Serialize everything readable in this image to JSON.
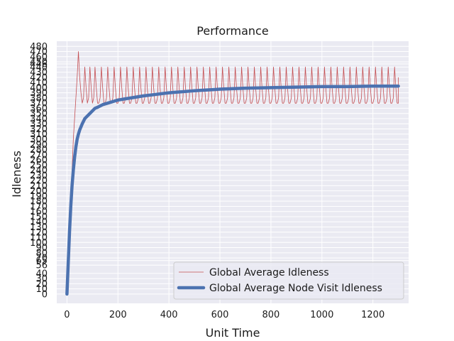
{
  "chart_data": {
    "type": "line",
    "title": "Performance",
    "xlabel": "Unit Time",
    "ylabel": "Idleness",
    "xlim": [
      -40,
      1340
    ],
    "ylim": [
      -18,
      490
    ],
    "grid": true,
    "legend_position": "lower-right",
    "x_ticks": [
      0,
      200,
      400,
      600,
      800,
      1000,
      1200
    ],
    "y_ticks": [
      0,
      10,
      20,
      30,
      40,
      56,
      65,
      70,
      80,
      90,
      100,
      110,
      120,
      130,
      140,
      150,
      160,
      170,
      180,
      190,
      200,
      210,
      220,
      230,
      240,
      250,
      260,
      270,
      280,
      290,
      300,
      310,
      320,
      330,
      340,
      350,
      360,
      370,
      380,
      390,
      400,
      410,
      420,
      430,
      440,
      446,
      450,
      460,
      470,
      480
    ],
    "series": [
      {
        "name": "Global Average Idleness",
        "color": "#c44e52",
        "style": "thin",
        "x": [
          0,
          5,
          10,
          15,
          20,
          25,
          30,
          35,
          40,
          45,
          50,
          55,
          60,
          65,
          70,
          75,
          80,
          85,
          90,
          95,
          100
        ],
        "y": [
          0,
          40,
          90,
          160,
          240,
          300,
          340,
          380,
          420,
          470,
          420,
          390,
          370,
          380,
          440,
          400,
          370,
          380,
          440,
          400,
          370
        ],
        "periodic_tail": {
          "x_start": 100,
          "x_end": 1300,
          "period": 25,
          "pattern_x": [
            0,
            5,
            10,
            15,
            20,
            25
          ],
          "pattern_y": [
            370,
            380,
            440,
            400,
            370,
            370
          ],
          "final_value": 420
        }
      },
      {
        "name": "Global Average Node Visit Idleness",
        "color": "#4c72b0",
        "style": "thick",
        "x": [
          0,
          5,
          10,
          15,
          20,
          25,
          30,
          35,
          40,
          45,
          50,
          60,
          70,
          80,
          90,
          100,
          110,
          120,
          140,
          160,
          180,
          200,
          250,
          300,
          350,
          400,
          450,
          500,
          600,
          700,
          800,
          900,
          1000,
          1100,
          1200,
          1300
        ],
        "y": [
          0,
          60,
          120,
          170,
          210,
          240,
          265,
          285,
          300,
          310,
          318,
          330,
          340,
          345,
          350,
          355,
          360,
          362,
          367,
          370,
          373,
          376,
          380,
          384,
          387,
          390,
          392,
          394,
          397,
          399,
          400,
          401,
          402,
          402,
          403,
          403
        ]
      }
    ]
  }
}
